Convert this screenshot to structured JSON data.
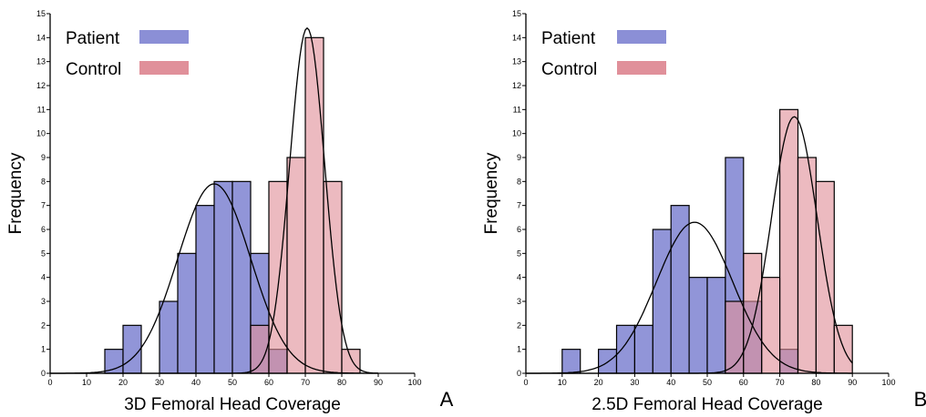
{
  "chart_data": [
    {
      "type": "bar",
      "panel_label": "A",
      "xlabel": "3D Femoral Head Coverage",
      "ylabel": "Frequency",
      "xlim": [
        0,
        100
      ],
      "ylim": [
        0,
        15
      ],
      "xticks": [
        0,
        10,
        20,
        30,
        40,
        50,
        60,
        70,
        80,
        90,
        100
      ],
      "yticks": [
        0,
        1,
        2,
        3,
        4,
        5,
        6,
        7,
        8,
        9,
        10,
        11,
        12,
        13,
        14,
        15
      ],
      "bin_width": 5,
      "legend_position": "top-left",
      "series": [
        {
          "name": "Patient",
          "color": "#8b8fd6",
          "bins": [
            [
              15,
              1
            ],
            [
              20,
              2
            ],
            [
              30,
              3
            ],
            [
              35,
              5
            ],
            [
              40,
              7
            ],
            [
              45,
              8
            ],
            [
              50,
              8
            ],
            [
              55,
              5
            ],
            [
              60,
              1
            ]
          ],
          "normal_curve": {
            "mean": 45,
            "peak": 7.9,
            "sd": 10
          }
        },
        {
          "name": "Control",
          "color": "#e0909a",
          "bins": [
            [
              55,
              2
            ],
            [
              60,
              8
            ],
            [
              65,
              9
            ],
            [
              70,
              14
            ],
            [
              75,
              8
            ],
            [
              80,
              1
            ]
          ],
          "normal_curve": {
            "mean": 70.5,
            "peak": 14.4,
            "sd": 4.8
          }
        }
      ]
    },
    {
      "type": "bar",
      "panel_label": "B",
      "xlabel": "2.5D Femoral Head Coverage",
      "ylabel": "Frequency",
      "xlim": [
        0,
        100
      ],
      "ylim": [
        0,
        15
      ],
      "xticks": [
        0,
        10,
        20,
        30,
        40,
        50,
        60,
        70,
        80,
        90,
        100
      ],
      "yticks": [
        0,
        1,
        2,
        3,
        4,
        5,
        6,
        7,
        8,
        9,
        10,
        11,
        12,
        13,
        14,
        15
      ],
      "bin_width": 5,
      "legend_position": "top-left",
      "series": [
        {
          "name": "Patient",
          "color": "#8b8fd6",
          "bins": [
            [
              10,
              1
            ],
            [
              20,
              1
            ],
            [
              25,
              2
            ],
            [
              30,
              2
            ],
            [
              35,
              6
            ],
            [
              40,
              7
            ],
            [
              45,
              4
            ],
            [
              50,
              4
            ],
            [
              55,
              9
            ],
            [
              60,
              3
            ],
            [
              70,
              1
            ]
          ],
          "normal_curve": {
            "mean": 46.5,
            "peak": 6.3,
            "sd": 10.5
          }
        },
        {
          "name": "Control",
          "color": "#e0909a",
          "bins": [
            [
              55,
              3
            ],
            [
              60,
              5
            ],
            [
              65,
              4
            ],
            [
              70,
              11
            ],
            [
              75,
              9
            ],
            [
              80,
              8
            ],
            [
              85,
              2
            ]
          ],
          "normal_curve": {
            "mean": 74,
            "peak": 10.7,
            "sd": 6.3
          }
        }
      ]
    }
  ]
}
